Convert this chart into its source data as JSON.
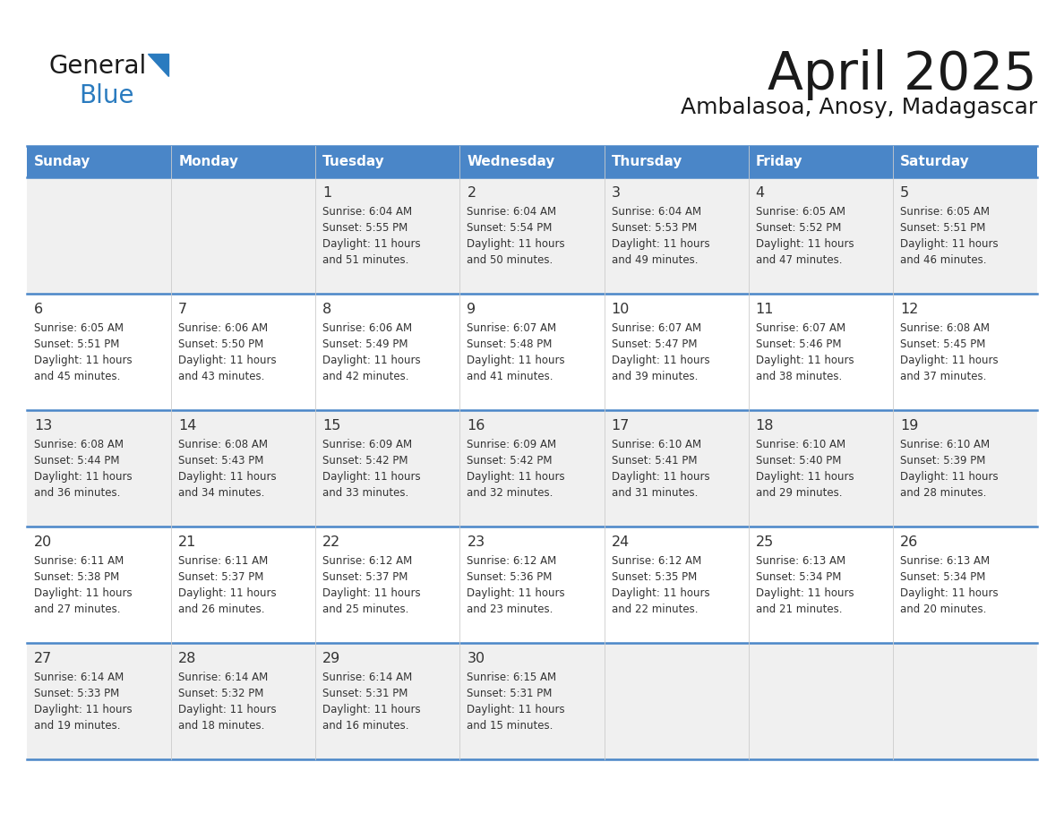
{
  "title": "April 2025",
  "subtitle": "Ambalasoa, Anosy, Madagascar",
  "days_of_week": [
    "Sunday",
    "Monday",
    "Tuesday",
    "Wednesday",
    "Thursday",
    "Friday",
    "Saturday"
  ],
  "header_bg": "#4a86c8",
  "header_text_color": "#ffffff",
  "row_bg_odd": "#f0f0f0",
  "row_bg_even": "#ffffff",
  "separator_color": "#4a86c8",
  "text_color": "#333333",
  "logo_text_color": "#1a1a1a",
  "logo_blue_color": "#2a7bbf",
  "logo_triangle_color": "#2a7bbf",
  "calendar_data": [
    [
      {
        "day": "",
        "sunrise": "",
        "sunset": "",
        "daylight": ""
      },
      {
        "day": "",
        "sunrise": "",
        "sunset": "",
        "daylight": ""
      },
      {
        "day": "1",
        "sunrise": "Sunrise: 6:04 AM",
        "sunset": "Sunset: 5:55 PM",
        "daylight": "Daylight: 11 hours\nand 51 minutes."
      },
      {
        "day": "2",
        "sunrise": "Sunrise: 6:04 AM",
        "sunset": "Sunset: 5:54 PM",
        "daylight": "Daylight: 11 hours\nand 50 minutes."
      },
      {
        "day": "3",
        "sunrise": "Sunrise: 6:04 AM",
        "sunset": "Sunset: 5:53 PM",
        "daylight": "Daylight: 11 hours\nand 49 minutes."
      },
      {
        "day": "4",
        "sunrise": "Sunrise: 6:05 AM",
        "sunset": "Sunset: 5:52 PM",
        "daylight": "Daylight: 11 hours\nand 47 minutes."
      },
      {
        "day": "5",
        "sunrise": "Sunrise: 6:05 AM",
        "sunset": "Sunset: 5:51 PM",
        "daylight": "Daylight: 11 hours\nand 46 minutes."
      }
    ],
    [
      {
        "day": "6",
        "sunrise": "Sunrise: 6:05 AM",
        "sunset": "Sunset: 5:51 PM",
        "daylight": "Daylight: 11 hours\nand 45 minutes."
      },
      {
        "day": "7",
        "sunrise": "Sunrise: 6:06 AM",
        "sunset": "Sunset: 5:50 PM",
        "daylight": "Daylight: 11 hours\nand 43 minutes."
      },
      {
        "day": "8",
        "sunrise": "Sunrise: 6:06 AM",
        "sunset": "Sunset: 5:49 PM",
        "daylight": "Daylight: 11 hours\nand 42 minutes."
      },
      {
        "day": "9",
        "sunrise": "Sunrise: 6:07 AM",
        "sunset": "Sunset: 5:48 PM",
        "daylight": "Daylight: 11 hours\nand 41 minutes."
      },
      {
        "day": "10",
        "sunrise": "Sunrise: 6:07 AM",
        "sunset": "Sunset: 5:47 PM",
        "daylight": "Daylight: 11 hours\nand 39 minutes."
      },
      {
        "day": "11",
        "sunrise": "Sunrise: 6:07 AM",
        "sunset": "Sunset: 5:46 PM",
        "daylight": "Daylight: 11 hours\nand 38 minutes."
      },
      {
        "day": "12",
        "sunrise": "Sunrise: 6:08 AM",
        "sunset": "Sunset: 5:45 PM",
        "daylight": "Daylight: 11 hours\nand 37 minutes."
      }
    ],
    [
      {
        "day": "13",
        "sunrise": "Sunrise: 6:08 AM",
        "sunset": "Sunset: 5:44 PM",
        "daylight": "Daylight: 11 hours\nand 36 minutes."
      },
      {
        "day": "14",
        "sunrise": "Sunrise: 6:08 AM",
        "sunset": "Sunset: 5:43 PM",
        "daylight": "Daylight: 11 hours\nand 34 minutes."
      },
      {
        "day": "15",
        "sunrise": "Sunrise: 6:09 AM",
        "sunset": "Sunset: 5:42 PM",
        "daylight": "Daylight: 11 hours\nand 33 minutes."
      },
      {
        "day": "16",
        "sunrise": "Sunrise: 6:09 AM",
        "sunset": "Sunset: 5:42 PM",
        "daylight": "Daylight: 11 hours\nand 32 minutes."
      },
      {
        "day": "17",
        "sunrise": "Sunrise: 6:10 AM",
        "sunset": "Sunset: 5:41 PM",
        "daylight": "Daylight: 11 hours\nand 31 minutes."
      },
      {
        "day": "18",
        "sunrise": "Sunrise: 6:10 AM",
        "sunset": "Sunset: 5:40 PM",
        "daylight": "Daylight: 11 hours\nand 29 minutes."
      },
      {
        "day": "19",
        "sunrise": "Sunrise: 6:10 AM",
        "sunset": "Sunset: 5:39 PM",
        "daylight": "Daylight: 11 hours\nand 28 minutes."
      }
    ],
    [
      {
        "day": "20",
        "sunrise": "Sunrise: 6:11 AM",
        "sunset": "Sunset: 5:38 PM",
        "daylight": "Daylight: 11 hours\nand 27 minutes."
      },
      {
        "day": "21",
        "sunrise": "Sunrise: 6:11 AM",
        "sunset": "Sunset: 5:37 PM",
        "daylight": "Daylight: 11 hours\nand 26 minutes."
      },
      {
        "day": "22",
        "sunrise": "Sunrise: 6:12 AM",
        "sunset": "Sunset: 5:37 PM",
        "daylight": "Daylight: 11 hours\nand 25 minutes."
      },
      {
        "day": "23",
        "sunrise": "Sunrise: 6:12 AM",
        "sunset": "Sunset: 5:36 PM",
        "daylight": "Daylight: 11 hours\nand 23 minutes."
      },
      {
        "day": "24",
        "sunrise": "Sunrise: 6:12 AM",
        "sunset": "Sunset: 5:35 PM",
        "daylight": "Daylight: 11 hours\nand 22 minutes."
      },
      {
        "day": "25",
        "sunrise": "Sunrise: 6:13 AM",
        "sunset": "Sunset: 5:34 PM",
        "daylight": "Daylight: 11 hours\nand 21 minutes."
      },
      {
        "day": "26",
        "sunrise": "Sunrise: 6:13 AM",
        "sunset": "Sunset: 5:34 PM",
        "daylight": "Daylight: 11 hours\nand 20 minutes."
      }
    ],
    [
      {
        "day": "27",
        "sunrise": "Sunrise: 6:14 AM",
        "sunset": "Sunset: 5:33 PM",
        "daylight": "Daylight: 11 hours\nand 19 minutes."
      },
      {
        "day": "28",
        "sunrise": "Sunrise: 6:14 AM",
        "sunset": "Sunset: 5:32 PM",
        "daylight": "Daylight: 11 hours\nand 18 minutes."
      },
      {
        "day": "29",
        "sunrise": "Sunrise: 6:14 AM",
        "sunset": "Sunset: 5:31 PM",
        "daylight": "Daylight: 11 hours\nand 16 minutes."
      },
      {
        "day": "30",
        "sunrise": "Sunrise: 6:15 AM",
        "sunset": "Sunset: 5:31 PM",
        "daylight": "Daylight: 11 hours\nand 15 minutes."
      },
      {
        "day": "",
        "sunrise": "",
        "sunset": "",
        "daylight": ""
      },
      {
        "day": "",
        "sunrise": "",
        "sunset": "",
        "daylight": ""
      },
      {
        "day": "",
        "sunrise": "",
        "sunset": "",
        "daylight": ""
      }
    ]
  ]
}
